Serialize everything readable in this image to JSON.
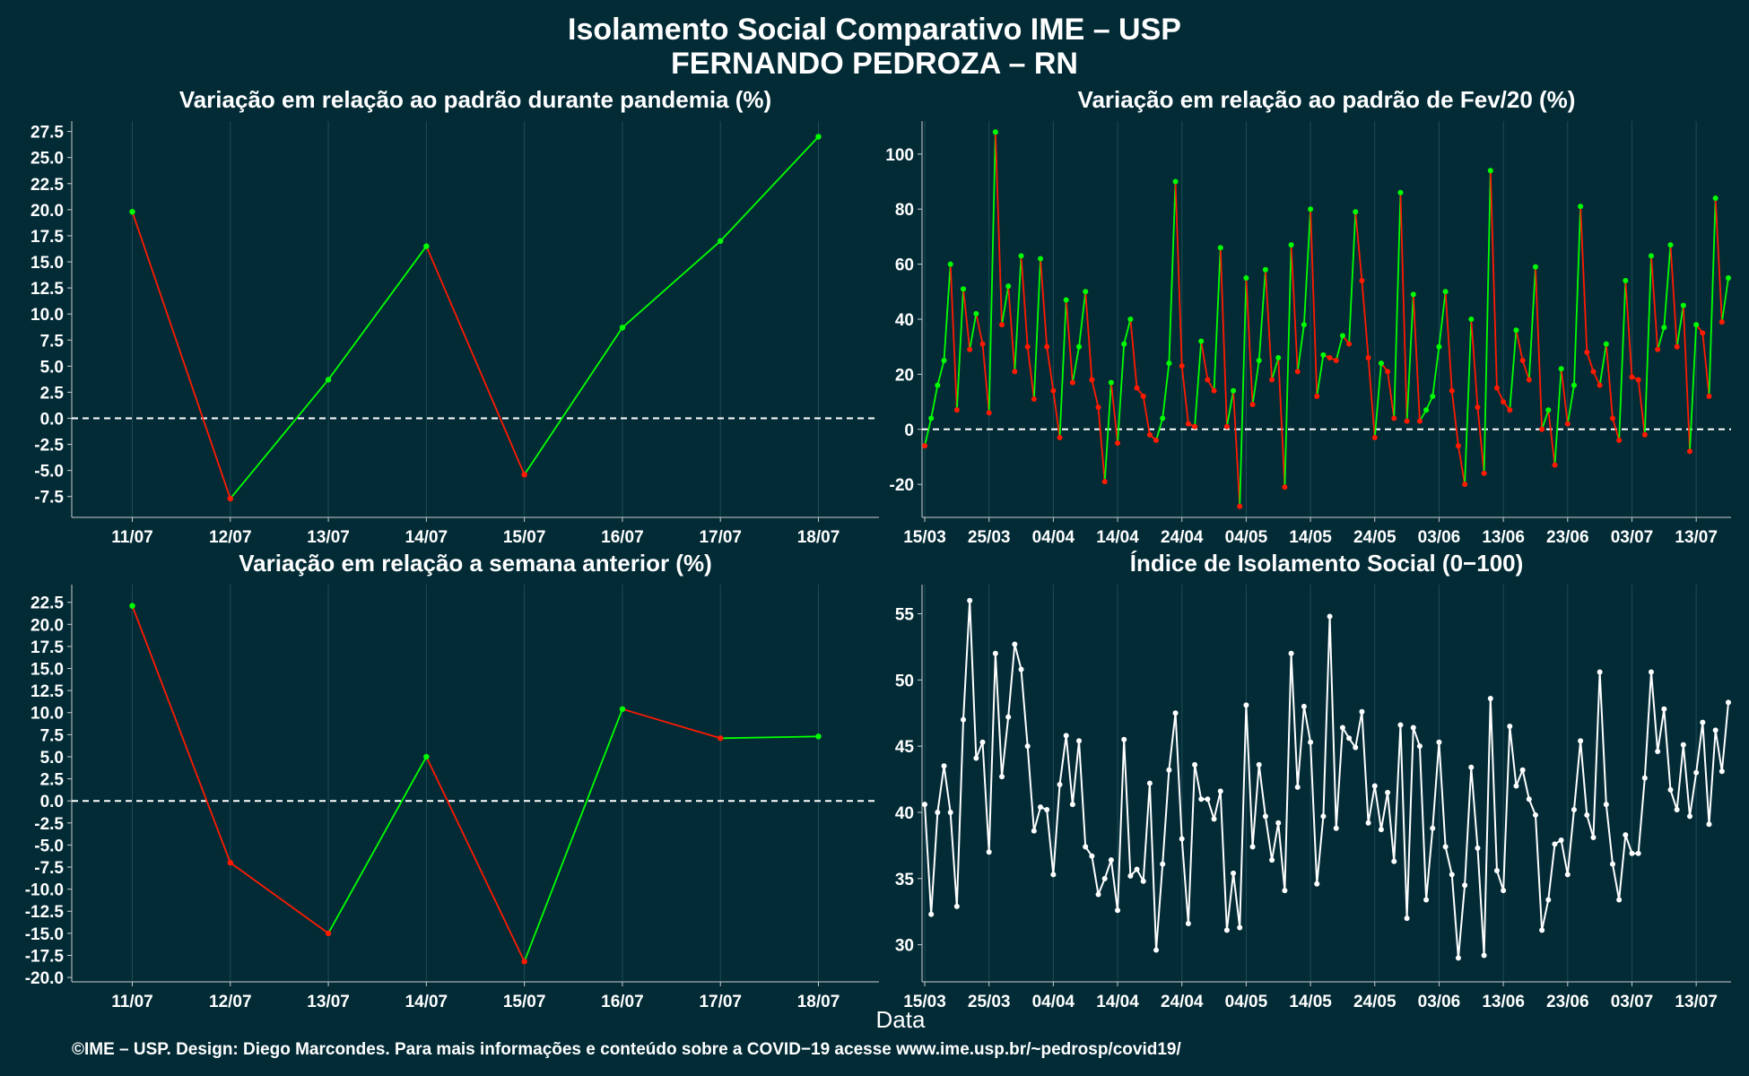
{
  "figure": {
    "title_line1": "Isolamento Social Comparativo IME – USP",
    "title_line2": "FERNANDO PEDROZA – RN",
    "xlabel": "Data",
    "caption": "©IME – USP. Design: Diego Marcondes. Para mais informações e conteúdo sobre a COVID−19 acesse www.ime.usp.br/~pedrosp/covid19/"
  },
  "colors": {
    "background": "#022b36",
    "increase": "#00ff00",
    "decrease": "#ff1a00",
    "index_line": "#ffffff",
    "reference_line": "#ffffff",
    "grid": "#1e4a55",
    "axis": "#cccccc"
  },
  "chart_data": [
    {
      "type": "line",
      "title": "Variação em relação ao padrão durante pandemia (%)",
      "categories": [
        "11/07",
        "12/07",
        "13/07",
        "14/07",
        "15/07",
        "16/07",
        "17/07",
        "18/07"
      ],
      "values": [
        19.8,
        -7.7,
        3.7,
        16.5,
        -5.4,
        8.7,
        17.0,
        27.0
      ],
      "ylim": [
        -9.5,
        28.5
      ],
      "yticks": [
        27.5,
        25.0,
        22.5,
        20.0,
        17.5,
        15.0,
        12.5,
        10.0,
        7.5,
        5.0,
        2.5,
        0.0,
        -2.5,
        -5.0,
        -7.5
      ],
      "reference_line": 0,
      "grid": "vertical"
    },
    {
      "type": "line",
      "title": "Variação em relação ao padrão de Fev/20 (%)",
      "x_start": "15/03",
      "x_end": "18/07",
      "xticks": [
        "15/03",
        "25/03",
        "04/04",
        "14/04",
        "24/04",
        "04/05",
        "14/05",
        "24/05",
        "03/06",
        "13/06",
        "23/06",
        "03/07",
        "13/07"
      ],
      "values": [
        -6,
        4,
        16,
        25,
        60,
        7,
        51,
        29,
        42,
        31,
        6,
        108,
        38,
        52,
        21,
        63,
        30,
        11,
        62,
        30,
        14,
        -3,
        47,
        17,
        30,
        50,
        18,
        8,
        -19,
        17,
        -5,
        31,
        40,
        15,
        12,
        -2,
        -4,
        4,
        24,
        90,
        23,
        2,
        1,
        32,
        18,
        14,
        66,
        1,
        14,
        -28,
        55,
        9,
        25,
        58,
        18,
        26,
        -21,
        67,
        21,
        38,
        80,
        12,
        27,
        26,
        25,
        34,
        31,
        79,
        54,
        26,
        -3,
        24,
        21,
        4,
        86,
        3,
        49,
        3,
        7,
        12,
        30,
        50,
        14,
        -6,
        -20,
        40,
        8,
        -16,
        94,
        15,
        10,
        7,
        36,
        25,
        18,
        59,
        0,
        7,
        -13,
        22,
        2,
        16,
        81,
        28,
        21,
        16,
        31,
        4,
        -4,
        54,
        19,
        18,
        -2,
        63,
        29,
        37,
        67,
        30,
        45,
        -8,
        38,
        35,
        12,
        84,
        39,
        55
      ],
      "ylim": [
        -32,
        112
      ],
      "yticks": [
        100,
        80,
        60,
        40,
        20,
        0,
        -20
      ],
      "reference_line": 0,
      "grid": "vertical"
    },
    {
      "type": "line",
      "title": "Variação em relação a semana anterior (%)",
      "categories": [
        "11/07",
        "12/07",
        "13/07",
        "14/07",
        "15/07",
        "16/07",
        "17/07",
        "18/07"
      ],
      "values": [
        22.1,
        -7.0,
        -15.0,
        5.0,
        -18.2,
        10.4,
        7.1,
        7.3
      ],
      "ylim": [
        -20.5,
        24.5
      ],
      "yticks": [
        22.5,
        20.0,
        17.5,
        15.0,
        12.5,
        10.0,
        7.5,
        5.0,
        2.5,
        0.0,
        -2.5,
        -5.0,
        -7.5,
        -10.0,
        -12.5,
        -15.0,
        -17.5,
        -20.0
      ],
      "reference_line": 0,
      "grid": "vertical"
    },
    {
      "type": "line",
      "title": "Índice de Isolamento Social (0−100)",
      "x_start": "15/03",
      "x_end": "18/07",
      "xticks": [
        "15/03",
        "25/03",
        "04/04",
        "14/04",
        "24/04",
        "04/05",
        "14/05",
        "24/05",
        "03/06",
        "13/06",
        "23/06",
        "03/07",
        "13/07"
      ],
      "values": [
        40.6,
        32.3,
        40.0,
        43.5,
        40.0,
        32.9,
        47.0,
        56.0,
        44.1,
        45.3,
        37.0,
        52.0,
        42.7,
        47.2,
        52.7,
        50.8,
        45.0,
        38.6,
        40.4,
        40.2,
        35.3,
        42.1,
        45.8,
        40.6,
        45.4,
        37.4,
        36.7,
        33.8,
        35.0,
        36.4,
        32.6,
        45.5,
        35.2,
        35.7,
        34.8,
        42.2,
        29.6,
        36.1,
        43.2,
        47.5,
        38.0,
        31.6,
        43.6,
        41.0,
        41.0,
        39.5,
        41.6,
        31.1,
        35.4,
        31.3,
        48.1,
        37.4,
        43.6,
        39.7,
        36.4,
        39.2,
        34.1,
        52.0,
        41.9,
        48.0,
        45.3,
        34.6,
        39.7,
        54.8,
        38.8,
        46.4,
        45.6,
        44.9,
        47.6,
        39.2,
        42.0,
        38.7,
        41.5,
        36.3,
        46.6,
        32.0,
        46.4,
        45.0,
        33.4,
        38.8,
        45.3,
        37.4,
        35.3,
        29.0,
        34.5,
        43.4,
        37.3,
        29.2,
        48.6,
        35.6,
        34.1,
        46.5,
        42.0,
        43.2,
        41.0,
        39.8,
        31.1,
        33.4,
        37.6,
        37.9,
        35.3,
        40.2,
        45.4,
        39.8,
        38.1,
        50.6,
        40.6,
        36.1,
        33.4,
        38.3,
        36.9,
        36.9,
        42.6,
        50.6,
        44.6,
        47.8,
        41.7,
        40.2,
        45.1,
        39.7,
        43.0,
        46.8,
        39.1,
        46.2,
        43.1,
        48.3
      ],
      "ylim": [
        27.2,
        57.2
      ],
      "yticks": [
        55,
        50,
        45,
        40,
        35,
        30
      ],
      "grid": "vertical"
    }
  ]
}
